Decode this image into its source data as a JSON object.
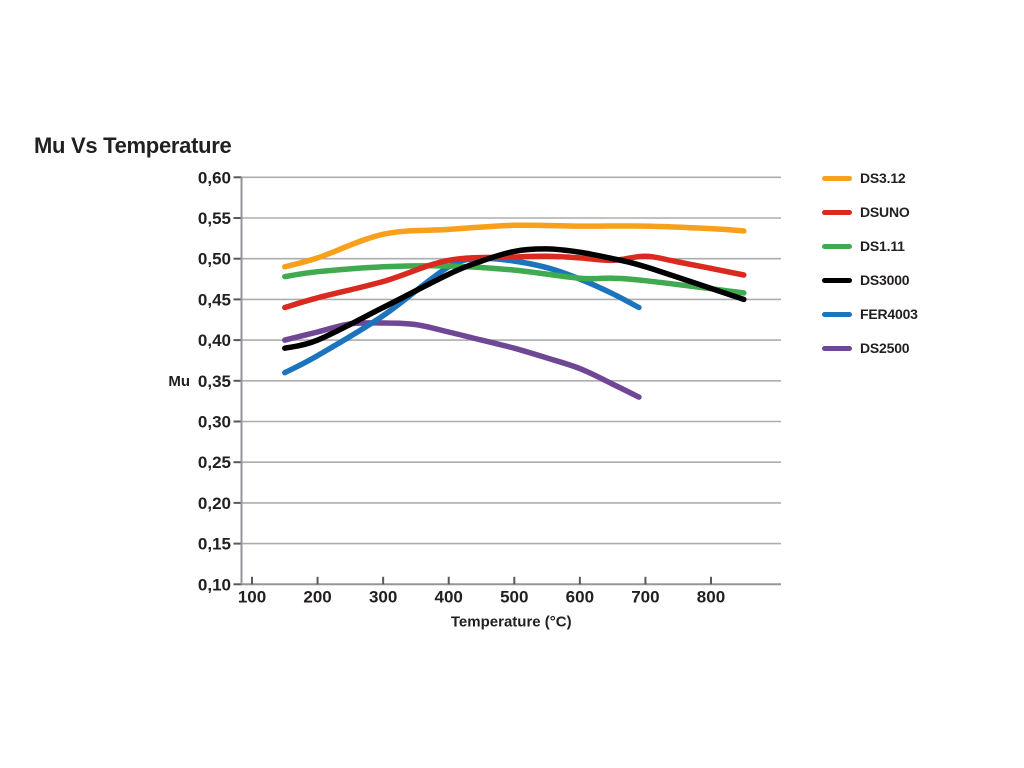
{
  "chart_data": {
    "type": "line",
    "title": "Mu Vs Temperature",
    "xlabel": "Temperature (°C)",
    "ylabel": "Mu",
    "xlim": [
      100,
      905
    ],
    "ylim": [
      0.1,
      0.6
    ],
    "xticks": [
      100,
      200,
      300,
      400,
      500,
      600,
      700,
      800
    ],
    "ytick_values": [
      0.6,
      0.55,
      0.5,
      0.45,
      0.4,
      0.35,
      0.3,
      0.25,
      0.2,
      0.15,
      0.1
    ],
    "ytick_labels": [
      "0,60",
      "0,55",
      "0,50",
      "0,45",
      "0,40",
      "0,35",
      "0,30",
      "0,25",
      "0,20",
      "0,15",
      "0,10"
    ],
    "grid": "horizontal-only",
    "legend_position": "right",
    "colors": {
      "grid": "#ABADB0",
      "axis": "#939598",
      "tick": "#58595B",
      "text": "#231F20"
    },
    "series": [
      {
        "name": "DS3.12",
        "color": "#F6A01B",
        "points": [
          [
            150,
            0.49
          ],
          [
            200,
            0.501
          ],
          [
            300,
            0.53
          ],
          [
            400,
            0.536
          ],
          [
            500,
            0.541
          ],
          [
            600,
            0.54
          ],
          [
            700,
            0.54
          ],
          [
            800,
            0.537
          ],
          [
            850,
            0.534
          ]
        ]
      },
      {
        "name": "DSUNO",
        "color": "#DA2A20",
        "points": [
          [
            150,
            0.44
          ],
          [
            200,
            0.452
          ],
          [
            300,
            0.472
          ],
          [
            400,
            0.498
          ],
          [
            500,
            0.502
          ],
          [
            550,
            0.503
          ],
          [
            600,
            0.501
          ],
          [
            650,
            0.498
          ],
          [
            700,
            0.503
          ],
          [
            750,
            0.496
          ],
          [
            850,
            0.48
          ]
        ]
      },
      {
        "name": "DS1.11",
        "color": "#3FAA4F",
        "points": [
          [
            150,
            0.478
          ],
          [
            200,
            0.484
          ],
          [
            300,
            0.49
          ],
          [
            400,
            0.491
          ],
          [
            500,
            0.486
          ],
          [
            600,
            0.476
          ],
          [
            650,
            0.476
          ],
          [
            700,
            0.473
          ],
          [
            850,
            0.458
          ]
        ]
      },
      {
        "name": "DS3000",
        "color": "#000000",
        "points": [
          [
            150,
            0.39
          ],
          [
            200,
            0.4
          ],
          [
            300,
            0.44
          ],
          [
            400,
            0.481
          ],
          [
            450,
            0.497
          ],
          [
            500,
            0.509
          ],
          [
            550,
            0.512
          ],
          [
            600,
            0.508
          ],
          [
            650,
            0.5
          ],
          [
            700,
            0.49
          ],
          [
            850,
            0.45
          ]
        ]
      },
      {
        "name": "FER4003",
        "color": "#1C75BC",
        "points": [
          [
            150,
            0.36
          ],
          [
            200,
            0.381
          ],
          [
            300,
            0.43
          ],
          [
            400,
            0.49
          ],
          [
            450,
            0.5
          ],
          [
            500,
            0.497
          ],
          [
            550,
            0.489
          ],
          [
            600,
            0.475
          ],
          [
            650,
            0.457
          ],
          [
            690,
            0.44
          ]
        ]
      },
      {
        "name": "DS2500",
        "color": "#6F4795",
        "points": [
          [
            150,
            0.4
          ],
          [
            200,
            0.41
          ],
          [
            250,
            0.42
          ],
          [
            300,
            0.421
          ],
          [
            350,
            0.419
          ],
          [
            400,
            0.41
          ],
          [
            450,
            0.4
          ],
          [
            500,
            0.39
          ],
          [
            550,
            0.378
          ],
          [
            600,
            0.365
          ],
          [
            650,
            0.346
          ],
          [
            690,
            0.33
          ]
        ]
      }
    ]
  }
}
